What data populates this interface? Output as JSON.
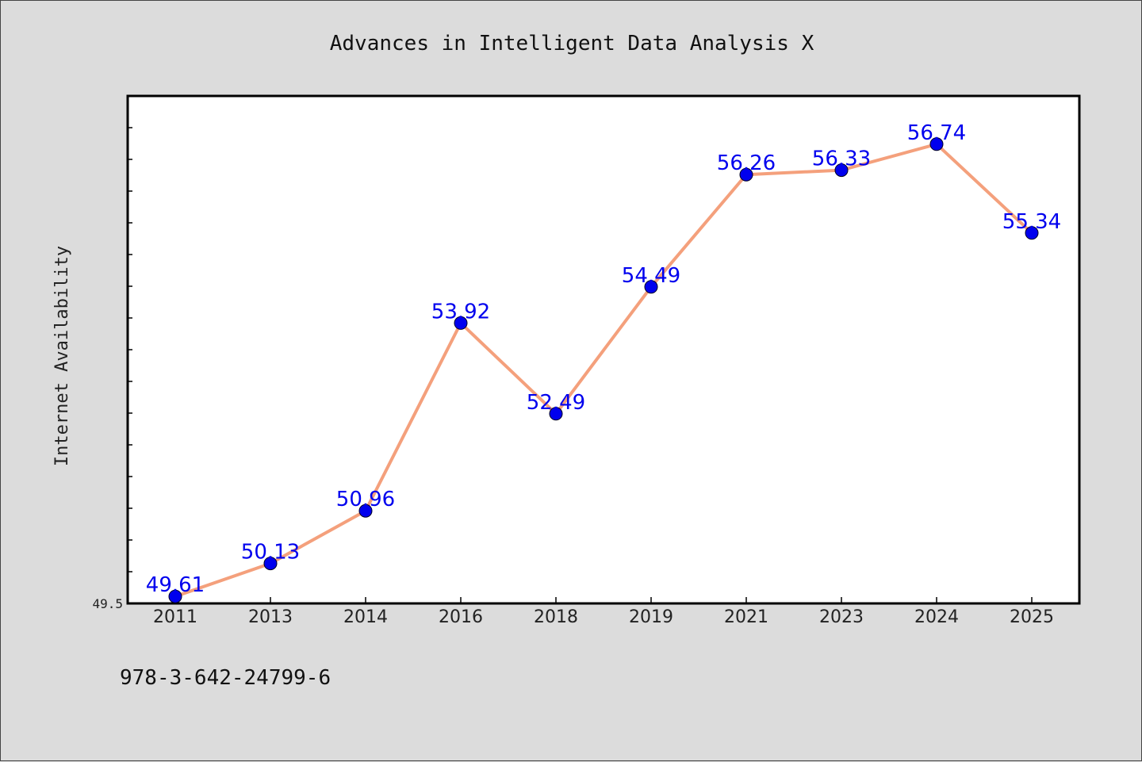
{
  "chart_data": {
    "type": "line",
    "title": "Advances in Intelligent Data Analysis X",
    "xlabel": "",
    "ylabel": "Internet Availability",
    "categories": [
      "2011",
      "2013",
      "2014",
      "2016",
      "2018",
      "2019",
      "2021",
      "2023",
      "2024",
      "2025"
    ],
    "series": [
      {
        "values": [
          49.61,
          50.13,
          50.96,
          53.92,
          52.49,
          54.49,
          56.26,
          56.33,
          56.74,
          55.34
        ],
        "value_labels": [
          "49.61",
          "50.13",
          "50.96",
          "53.92",
          "52.49",
          "54.49",
          "56.26",
          "56.33",
          "56.74",
          "55.34"
        ],
        "line_color": "#f4a07c",
        "marker_color": "#0000ee"
      }
    ],
    "ylim": [
      49.5,
      57.5
    ],
    "ytick_labels": [
      "49.5"
    ],
    "grid": false,
    "legend": "none"
  },
  "footer": {
    "isbn": "978-3-642-24799-6"
  },
  "colors": {
    "background": "#dcdcdc",
    "plot_background": "#ffffff",
    "axis": "#000000",
    "line": "#f4a07c",
    "marker": "#0000ee",
    "data_label": "#0000ee"
  }
}
